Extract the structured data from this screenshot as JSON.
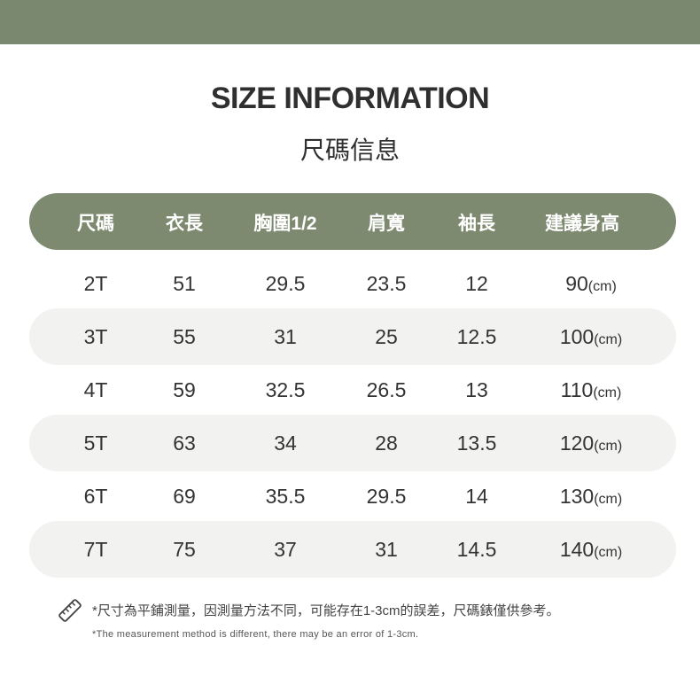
{
  "title": "SIZE INFORMATION",
  "subtitle": "尺碼信息",
  "colors": {
    "accent": "#7d8a70",
    "stripe": "#f2f2f0"
  },
  "headers": [
    "尺碼",
    "衣長",
    "胸圍1/2",
    "肩寬",
    "袖長",
    "建議身高"
  ],
  "unit": "(cm)",
  "rows": [
    [
      "2T",
      "51",
      "29.5",
      "23.5",
      "12",
      "90"
    ],
    [
      "3T",
      "55",
      "31",
      "25",
      "12.5",
      "100"
    ],
    [
      "4T",
      "59",
      "32.5",
      "26.5",
      "13",
      "110"
    ],
    [
      "5T",
      "63",
      "34",
      "28",
      "13.5",
      "120"
    ],
    [
      "6T",
      "69",
      "35.5",
      "29.5",
      "14",
      "130"
    ],
    [
      "7T",
      "75",
      "37",
      "31",
      "14.5",
      "140"
    ]
  ],
  "note_icon": "ruler-icon",
  "note_zh": "*尺寸為平鋪測量，因測量方法不同，可能存在1-3cm的誤差，尺碼錶僅供參考。",
  "note_en": "*The measurement method is different, there may be an error of 1-3cm."
}
